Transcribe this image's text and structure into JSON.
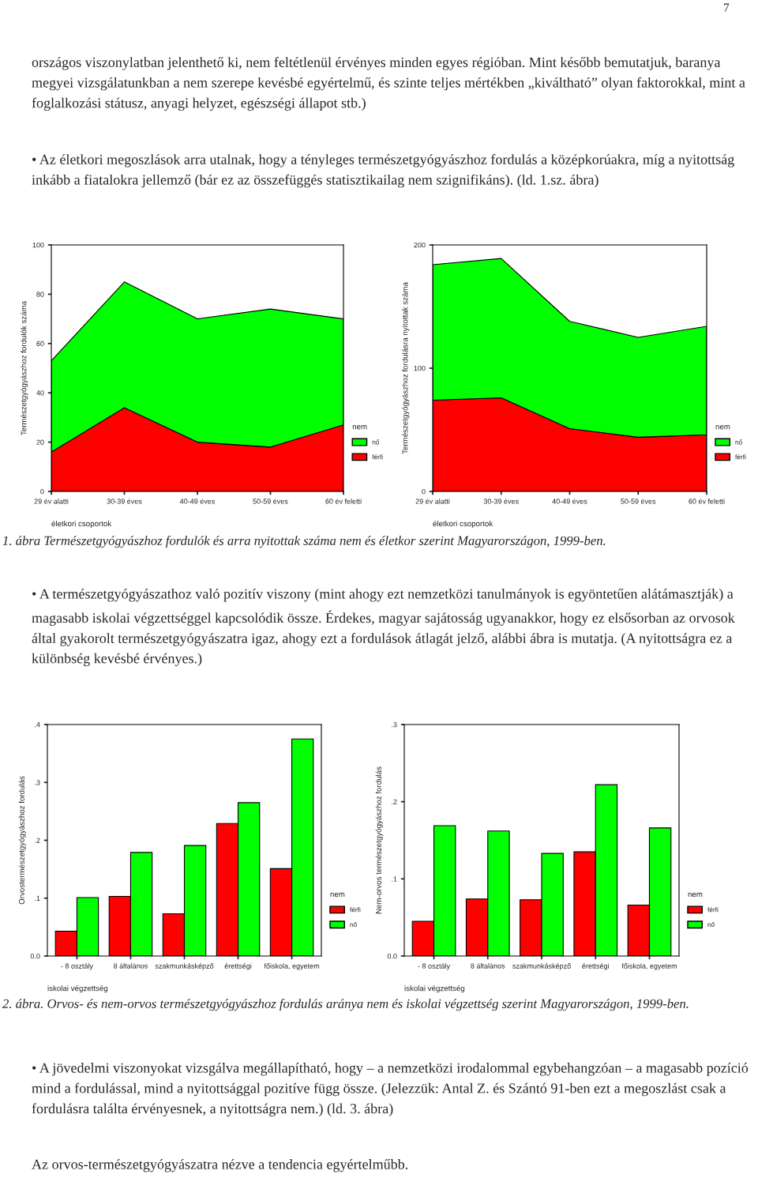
{
  "chart_data": [
    {
      "type": "area",
      "stacked": true,
      "xlabel": "életkori csoportok",
      "ylabel": "Természetgyógyászhoz fordulók száma",
      "legend_title": "nem",
      "legend": "right",
      "categories": [
        "29 év alatti",
        "30-39 éves",
        "40-49 éves",
        "50-59 éves",
        "60 év feletti"
      ],
      "series": [
        {
          "name": "férfi",
          "color": "#ff0000",
          "values": [
            16,
            34,
            20,
            18,
            27
          ]
        },
        {
          "name": "nő",
          "color": "#00ff00",
          "values": [
            37,
            51,
            50,
            56,
            43
          ]
        }
      ],
      "ylim": [
        0,
        100
      ],
      "yticks": [
        0,
        20,
        40,
        60,
        80,
        100
      ],
      "annotations": [
        "7",
        "országos viszonylatban jelenthető ki, nem feltétlenül érvényes minden egyes régióban. Mint később bemutatjuk, baranya megyei vizsgálatunkban a nem szerepe kevésbé egyértelmű, és szinte teljes mértékben „kiváltható” olyan faktorokkal, mint a foglalkozási státusz, anyagi helyzet, egészségi állapot stb.)",
        "• Az életkori megoszlások arra utalnak, hogy a tényleges természetgyógyászhoz fordulás a középkorúakra, míg a nyitottság inkább a fiatalokra jellemző (bár ez az összefüggés statisztikailag nem szignifikáns). (ld. 1.sz. ábra)"
      ]
    },
    {
      "type": "area",
      "stacked": true,
      "xlabel": "életkori csoportok",
      "ylabel": "Természetgyógyászhoz fordulásra nyitottak száma",
      "legend_title": "nem",
      "legend": "right",
      "categories": [
        "29 év alatti",
        "30-39 éves",
        "40-49 éves",
        "50-59 éves",
        "60 év feletti"
      ],
      "series": [
        {
          "name": "férfi",
          "color": "#ff0000",
          "values": [
            74,
            76,
            51,
            44,
            46
          ]
        },
        {
          "name": "nő",
          "color": "#00ff00",
          "values": [
            110,
            113,
            87,
            81,
            88
          ]
        }
      ],
      "ylim": [
        0,
        200
      ],
      "yticks": [
        0,
        100,
        200
      ],
      "annotations": [
        "1. ábra Természetgyógyászhoz fordulók és arra nyitottak száma nem és életkor szerint Magyarországon, 1999-ben."
      ]
    },
    {
      "type": "bar",
      "xlabel": "iskolai végzettség",
      "ylabel": "Orvostermészetgyógyászhoz fordulás",
      "legend_title": "nem",
      "legend": "right",
      "categories": [
        "- 8 osztály",
        "8 általános",
        "szakmunkásképző",
        "érettségi",
        "főiskola, egyetem"
      ],
      "series": [
        {
          "name": "férfi",
          "color": "#ff0000",
          "values": [
            0.043,
            0.103,
            0.073,
            0.229,
            0.151
          ]
        },
        {
          "name": "nő",
          "color": "#00ff00",
          "values": [
            0.101,
            0.179,
            0.191,
            0.265,
            0.375
          ]
        }
      ],
      "ylim": [
        0,
        0.4
      ],
      "yticks": [
        {
          "value": 0,
          "label": "0.0"
        },
        {
          "value": 0.1,
          "label": ".1"
        },
        {
          "value": 0.2,
          "label": ".2"
        },
        {
          "value": 0.3,
          "label": ".3"
        },
        {
          "value": 0.4,
          "label": ".4"
        }
      ],
      "annotations": [
        "• A természetgyógyászathoz való pozitív viszony (mint ahogy ezt nemzetközi tanulmányok is egyöntetűen alátámasztják) a magasabb iskolai végzettséggel kapcsolódik össze. Érdekes, magyar sajátosság ugyanakkor, hogy ez elsősorban az orvosok által gyakorolt természetgyógyászatra igaz, ahogy ezt a fordulások átlagát jelző, alábbi ábra is mutatja. (A nyitottságra ez a különbség kevésbé érvényes.)"
      ]
    },
    {
      "type": "bar",
      "xlabel": "iskolai végzettség",
      "ylabel": "Nem-orvos természetgyógyászhoz fordulás",
      "legend_title": "nem",
      "legend": "right",
      "categories": [
        "- 8 osztály",
        "8 általános",
        "szakmunkásképző",
        "érettségi",
        "főiskola, egyetem"
      ],
      "series": [
        {
          "name": "férfi",
          "color": "#ff0000",
          "values": [
            0.045,
            0.074,
            0.073,
            0.135,
            0.066
          ]
        },
        {
          "name": "nő",
          "color": "#00ff00",
          "values": [
            0.169,
            0.162,
            0.133,
            0.222,
            0.166
          ]
        }
      ],
      "ylim": [
        0,
        0.3
      ],
      "yticks": [
        {
          "value": 0,
          "label": "0.0"
        },
        {
          "value": 0.1,
          "label": ".1"
        },
        {
          "value": 0.2,
          "label": ".2"
        },
        {
          "value": 0.3,
          "label": ".3"
        }
      ],
      "annotations": [
        "2. ábra. Orvos- és nem-orvos természetgyógyászhoz fordulás aránya nem és iskolai végzettség szerint Magyarországon, 1999-ben.",
        "• A jövedelmi viszonyokat vizsgálva megállapítható, hogy – a nemzetközi irodalommal egybehangzóan – a magasabb pozíció mind a fordulással, mind a nyitottsággal pozitíve függ össze. (Jelezzük: Antal Z. és Szántó 91-ben ezt a megoszlást csak a fordulásra találta érvényesnek, a nyitottságra nem.) (ld. 3. ábra)",
        "Az orvos-természetgyógyászatra nézve a tendencia egyértelműbb."
      ]
    }
  ]
}
